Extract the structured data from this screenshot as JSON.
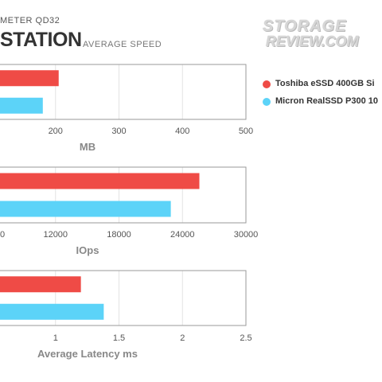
{
  "header": {
    "subtitle": "METER QD32",
    "title": "STATION",
    "title_sub": "AVERAGE SPEED",
    "logo_line1": "STORAGE",
    "logo_line2": "REVIEW.COM"
  },
  "colors": {
    "series1": "#ef4b46",
    "series2": "#5cd3f8",
    "grid": "#e3e3e3",
    "frame": "#9a9a9a",
    "axis_text": "#555555"
  },
  "legend": [
    {
      "name": "Toshiba eSSD 400GB Si",
      "color": "#ef4b46"
    },
    {
      "name": "Micron RealSSD P300 10",
      "color": "#5cd3f8"
    }
  ],
  "chart_data": [
    {
      "type": "bar",
      "orientation": "horizontal",
      "xlabel": "MB",
      "xlim": [
        100,
        500
      ],
      "ticks": [
        "200",
        "300",
        "400",
        "500"
      ],
      "series": [
        {
          "name": "Toshiba eSSD 400GB Si",
          "values": [
            205
          ]
        },
        {
          "name": "Micron RealSSD P300 10",
          "values": [
            180
          ]
        }
      ]
    },
    {
      "type": "bar",
      "orientation": "horizontal",
      "xlabel": "IOps",
      "xlim": [
        6000,
        30000
      ],
      "ticks": [
        "0",
        "12000",
        "18000",
        "24000",
        "30000"
      ],
      "series": [
        {
          "name": "Toshiba eSSD 400GB Si",
          "values": [
            25600
          ]
        },
        {
          "name": "Micron RealSSD P300 10",
          "values": [
            22900
          ]
        }
      ]
    },
    {
      "type": "bar",
      "orientation": "horizontal",
      "xlabel": "Average Latency ms",
      "xlim": [
        0.5,
        2.5
      ],
      "ticks": [
        "1",
        "1.5",
        "2",
        "2.5"
      ],
      "series": [
        {
          "name": "Toshiba eSSD 400GB Si",
          "values": [
            1.2
          ]
        },
        {
          "name": "Micron RealSSD P300 10",
          "values": [
            1.38
          ]
        }
      ]
    }
  ]
}
